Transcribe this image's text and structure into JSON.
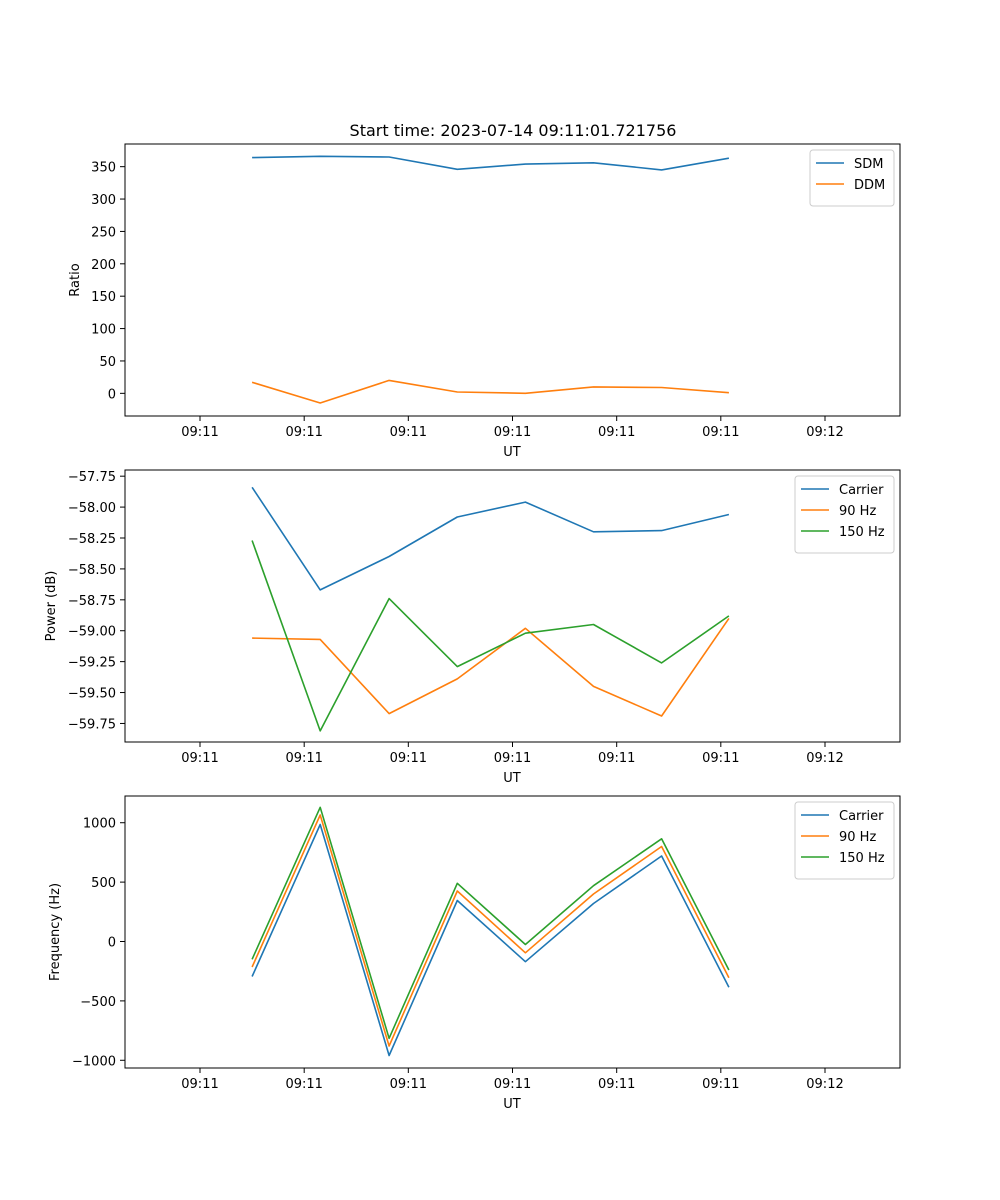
{
  "chart_data": [
    {
      "type": "line",
      "title": "Start time: 2023-07-14 09:11:01.721756",
      "xlabel": "UT",
      "ylabel": "Ratio",
      "xlim": [
        -0.12,
        1.12
      ],
      "xticks": [
        0,
        0.1667,
        0.3333,
        0.5,
        0.6667,
        0.8333,
        1
      ],
      "xtick_labels": [
        "09:11",
        "09:11",
        "09:11",
        "09:11",
        "09:11",
        "09:11",
        "09:12"
      ],
      "ylim": [
        -35,
        385
      ],
      "yticks": [
        0,
        50,
        100,
        150,
        200,
        250,
        300,
        350
      ],
      "ytick_labels": [
        "0",
        "50",
        "100",
        "150",
        "200",
        "250",
        "300",
        "350"
      ],
      "x": [
        0.0833,
        0.1923,
        0.3026,
        0.4116,
        0.5206,
        0.6296,
        0.7386,
        0.8463
      ],
      "series": [
        {
          "name": "SDM",
          "color": "#1f77b4",
          "values": [
            364,
            366,
            365,
            346,
            354,
            356,
            345,
            363
          ]
        },
        {
          "name": "DDM",
          "color": "#ff7f0e",
          "values": [
            17,
            -15,
            20,
            2,
            0,
            10,
            9,
            1
          ]
        }
      ],
      "legend": "top-right"
    },
    {
      "type": "line",
      "title": "",
      "xlabel": "UT",
      "ylabel": "Power (dB)",
      "xlim": [
        -0.12,
        1.12
      ],
      "xticks": [
        0,
        0.1667,
        0.3333,
        0.5,
        0.6667,
        0.8333,
        1
      ],
      "xtick_labels": [
        "09:11",
        "09:11",
        "09:11",
        "09:11",
        "09:11",
        "09:11",
        "09:12"
      ],
      "ylim": [
        -59.9,
        -57.7
      ],
      "yticks": [
        -59.75,
        -59.5,
        -59.25,
        -59.0,
        -58.75,
        -58.5,
        -58.25,
        -58.0,
        -57.75
      ],
      "ytick_labels": [
        "−59.75",
        "−59.50",
        "−59.25",
        "−59.00",
        "−58.75",
        "−58.50",
        "−58.25",
        "−58.00",
        "−57.75"
      ],
      "x": [
        0.0833,
        0.1923,
        0.3026,
        0.4116,
        0.5206,
        0.6296,
        0.7386,
        0.8463
      ],
      "series": [
        {
          "name": "Carrier",
          "color": "#1f77b4",
          "values": [
            -57.84,
            -58.67,
            -58.4,
            -58.08,
            -57.96,
            -58.2,
            -58.19,
            -58.06
          ]
        },
        {
          "name": "90 Hz",
          "color": "#ff7f0e",
          "values": [
            -59.06,
            -59.07,
            -59.67,
            -59.39,
            -58.98,
            -59.45,
            -59.69,
            -58.9
          ]
        },
        {
          "name": "150 Hz",
          "color": "#2ca02c",
          "values": [
            -58.27,
            -59.81,
            -58.74,
            -59.29,
            -59.02,
            -58.95,
            -59.26,
            -58.88
          ]
        }
      ],
      "legend": "top-right"
    },
    {
      "type": "line",
      "title": "",
      "xlabel": "UT",
      "ylabel": "Frequency (Hz)",
      "xlim": [
        -0.12,
        1.12
      ],
      "xticks": [
        0,
        0.1667,
        0.3333,
        0.5,
        0.6667,
        0.8333,
        1
      ],
      "xtick_labels": [
        "09:11",
        "09:11",
        "09:11",
        "09:11",
        "09:11",
        "09:11",
        "09:12"
      ],
      "ylim": [
        -1065,
        1225
      ],
      "yticks": [
        -1000,
        -500,
        0,
        500,
        1000
      ],
      "ytick_labels": [
        "−1000",
        "−500",
        "0",
        "500",
        "1000"
      ],
      "x": [
        0.0833,
        0.1923,
        0.3026,
        0.4116,
        0.5206,
        0.6296,
        0.7386,
        0.8463
      ],
      "series": [
        {
          "name": "Carrier",
          "color": "#1f77b4",
          "values": [
            -295,
            985,
            -960,
            345,
            -170,
            320,
            720,
            -385
          ]
        },
        {
          "name": "90 Hz",
          "color": "#ff7f0e",
          "values": [
            -215,
            1065,
            -880,
            425,
            -95,
            400,
            800,
            -305
          ]
        },
        {
          "name": "150 Hz",
          "color": "#2ca02c",
          "values": [
            -150,
            1130,
            -815,
            490,
            -25,
            470,
            865,
            -240
          ]
        }
      ],
      "legend": "top-right"
    }
  ]
}
